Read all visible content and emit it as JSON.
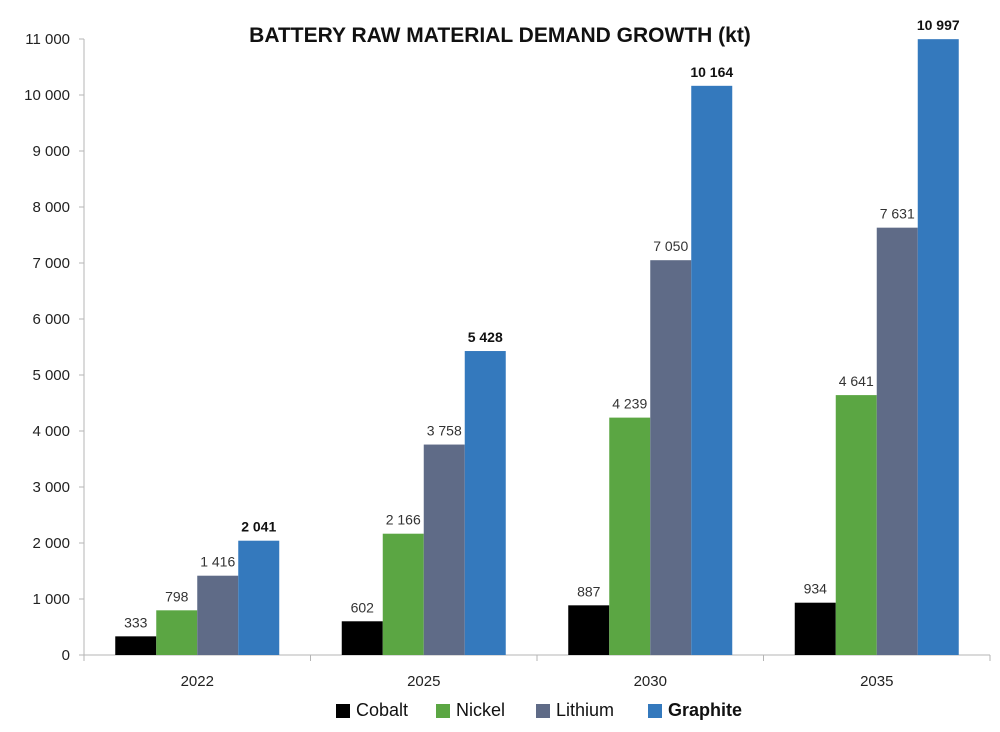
{
  "chart_data": {
    "type": "bar",
    "title": "BATTERY RAW MATERIAL DEMAND GROWTH (kt)",
    "xlabel": "",
    "ylabel": "",
    "categories": [
      "2022",
      "2025",
      "2030",
      "2035"
    ],
    "ylim": [
      0,
      11000
    ],
    "yticks": [
      0,
      1000,
      2000,
      3000,
      4000,
      5000,
      6000,
      7000,
      8000,
      9000,
      10000,
      11000
    ],
    "ytick_labels": [
      "0",
      "1 000",
      "2 000",
      "3 000",
      "4 000",
      "5 000",
      "6 000",
      "7 000",
      "8 000",
      "9 000",
      "10 000",
      "11 000"
    ],
    "grid": false,
    "legend_position": "bottom",
    "series": [
      {
        "name": "Cobalt",
        "color": "#000000",
        "values": [
          333,
          602,
          887,
          934
        ],
        "labels": [
          "333",
          "602",
          "887",
          "934"
        ],
        "bold": false
      },
      {
        "name": "Nickel",
        "color": "#5ba643",
        "values": [
          798,
          2166,
          4239,
          4641
        ],
        "labels": [
          "798",
          "2 166",
          "4 239",
          "4 641"
        ],
        "bold": false
      },
      {
        "name": "Lithium",
        "color": "#5f6b87",
        "values": [
          1416,
          3758,
          7050,
          7631
        ],
        "labels": [
          "1 416",
          "3 758",
          "7 050",
          "7 631"
        ],
        "bold": false
      },
      {
        "name": "Graphite",
        "color": "#3479bd",
        "values": [
          2041,
          5428,
          10164,
          10997
        ],
        "labels": [
          "2 041",
          "5 428",
          "10 164",
          "10 997"
        ],
        "bold": true
      }
    ]
  }
}
